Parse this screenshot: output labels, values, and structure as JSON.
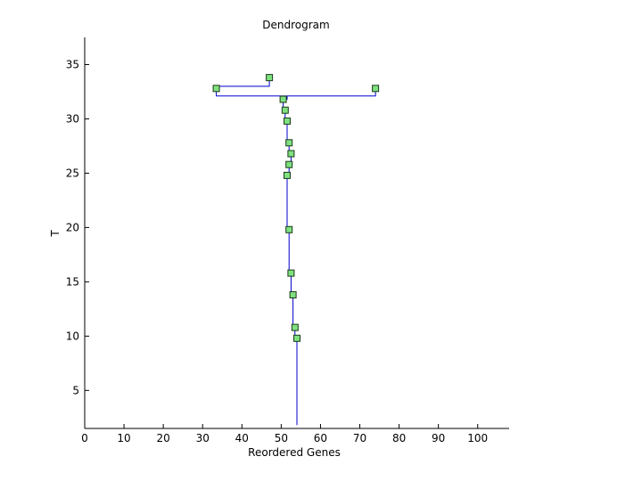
{
  "chart_data": {
    "type": "line",
    "title": "Dendrogram",
    "xlabel": "Reordered Genes",
    "ylabel": "T",
    "xlim": [
      0,
      108
    ],
    "ylim": [
      1.5,
      37.5
    ],
    "x_ticks": [
      0,
      10,
      20,
      30,
      40,
      50,
      60,
      70,
      80,
      90,
      100
    ],
    "y_ticks": [
      5,
      10,
      15,
      20,
      25,
      30,
      35
    ],
    "grid": false,
    "line_color": "#0000cc",
    "marker_fill": "#7fe07f",
    "marker_edge": "#1a3a1a",
    "series": [
      {
        "values": [
          {
            "x": 54.0,
            "y": 1.8
          },
          {
            "x": 54.0,
            "y": 9.8
          },
          {
            "x": 53.5,
            "y": 9.8
          },
          {
            "x": 53.5,
            "y": 10.8
          },
          {
            "x": 53.0,
            "y": 10.8
          },
          {
            "x": 53.0,
            "y": 13.8
          },
          {
            "x": 52.5,
            "y": 13.8
          },
          {
            "x": 52.5,
            "y": 15.8
          },
          {
            "x": 52.0,
            "y": 15.8
          },
          {
            "x": 52.0,
            "y": 19.8
          },
          {
            "x": 51.5,
            "y": 19.8
          },
          {
            "x": 51.5,
            "y": 24.8
          },
          {
            "x": 52.0,
            "y": 24.8
          },
          {
            "x": 52.0,
            "y": 25.8
          },
          {
            "x": 52.5,
            "y": 25.8
          },
          {
            "x": 52.5,
            "y": 26.8
          },
          {
            "x": 52.0,
            "y": 26.8
          },
          {
            "x": 52.0,
            "y": 27.8
          },
          {
            "x": 51.5,
            "y": 27.8
          },
          {
            "x": 51.5,
            "y": 29.8
          },
          {
            "x": 51.0,
            "y": 29.8
          },
          {
            "x": 51.0,
            "y": 30.8
          },
          {
            "x": 50.5,
            "y": 30.8
          },
          {
            "x": 50.5,
            "y": 31.8
          },
          {
            "x": 51.5,
            "y": 31.8
          },
          {
            "x": 51.5,
            "y": 32.1
          }
        ]
      },
      {
        "values": [
          {
            "x": 33.5,
            "y": 32.8
          },
          {
            "x": 33.5,
            "y": 32.1
          },
          {
            "x": 74.0,
            "y": 32.1
          },
          {
            "x": 74.0,
            "y": 32.8
          }
        ]
      },
      {
        "values": [
          {
            "x": 33.5,
            "y": 33.0
          },
          {
            "x": 47.0,
            "y": 33.0
          },
          {
            "x": 47.0,
            "y": 33.8
          }
        ]
      }
    ],
    "markers": [
      {
        "x": 47.0,
        "y": 33.8
      },
      {
        "x": 33.5,
        "y": 32.8
      },
      {
        "x": 74.0,
        "y": 32.8
      },
      {
        "x": 50.5,
        "y": 31.8
      },
      {
        "x": 51.0,
        "y": 30.8
      },
      {
        "x": 51.5,
        "y": 29.8
      },
      {
        "x": 52.0,
        "y": 27.8
      },
      {
        "x": 52.5,
        "y": 26.8
      },
      {
        "x": 52.0,
        "y": 25.8
      },
      {
        "x": 51.5,
        "y": 24.8
      },
      {
        "x": 52.0,
        "y": 19.8
      },
      {
        "x": 52.5,
        "y": 15.8
      },
      {
        "x": 53.0,
        "y": 13.8
      },
      {
        "x": 53.5,
        "y": 10.8
      },
      {
        "x": 54.0,
        "y": 9.8
      }
    ]
  }
}
